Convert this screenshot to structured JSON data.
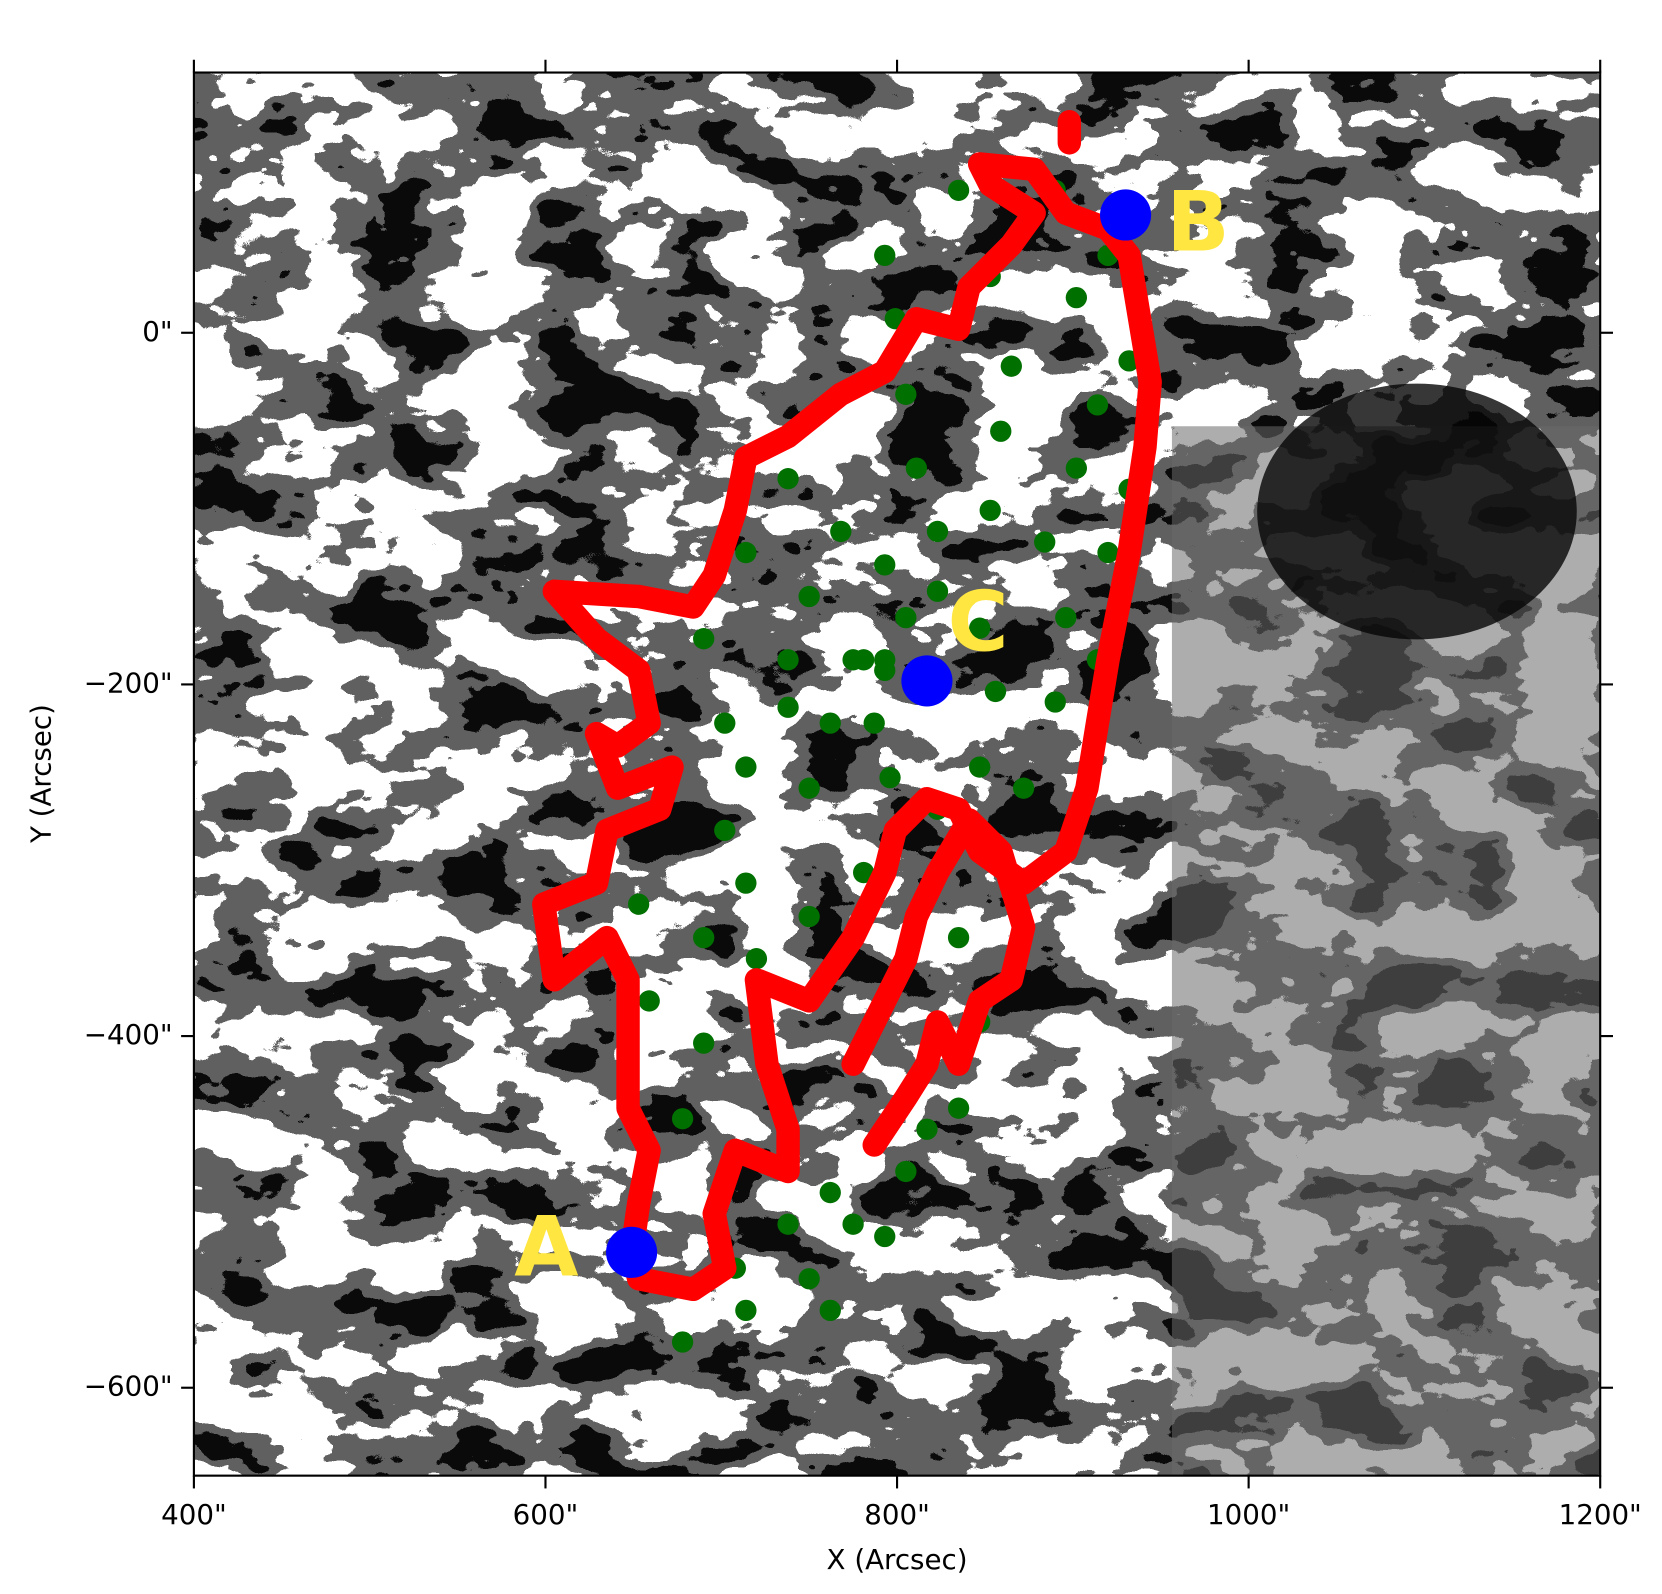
{
  "chart_data": {
    "type": "scatter",
    "x_label": "X (Arcsec)",
    "y_label": "Y (Arcsec)",
    "xlim": [
      400,
      1200
    ],
    "ylim": [
      -650,
      148
    ],
    "xticks": [
      {
        "value": 400,
        "label": "400\""
      },
      {
        "value": 600,
        "label": "600\""
      },
      {
        "value": 800,
        "label": "800\""
      },
      {
        "value": 1000,
        "label": "1000\""
      },
      {
        "value": 1200,
        "label": "1200\""
      }
    ],
    "yticks": [
      {
        "value": 0,
        "label": "0\""
      },
      {
        "value": -200,
        "label": "−200\""
      },
      {
        "value": -400,
        "label": "−400\""
      },
      {
        "value": -600,
        "label": "−600\""
      }
    ],
    "series": [
      {
        "color": "#007000",
        "mode": "markers",
        "x": [
          823,
          847,
          856,
          847,
          823,
          796,
          787,
          793,
          805,
          823,
          853,
          884,
          896,
          890,
          872,
          811,
          859,
          902,
          920,
          914,
          805,
          865,
          914,
          932,
          799,
          853,
          902,
          932,
          793,
          835,
          890,
          920,
          665,
          714,
          762,
          793,
          653,
          702,
          750,
          659,
          690,
          714,
          678,
          690,
          678,
          714,
          750,
          775,
          805,
          835,
          708,
          738,
          762,
          714,
          750,
          781,
          738,
          768,
          793,
          690,
          738,
          775,
          702,
          738,
          781,
          750,
          720,
          835,
          847,
          817,
          793,
          762
        ],
        "y": [
          -147,
          -168,
          -204,
          -247,
          -271,
          -253,
          -222,
          -186,
          -162,
          -113,
          -101,
          -119,
          -162,
          -210,
          -259,
          -77,
          -56,
          -77,
          -125,
          -186,
          -35,
          -19,
          -41,
          -89,
          8,
          32,
          20,
          -16,
          44,
          81,
          81,
          44,
          -271,
          -247,
          -222,
          -192,
          -325,
          -283,
          -259,
          -380,
          -344,
          -313,
          -447,
          -404,
          -574,
          -556,
          -538,
          -507,
          -477,
          -441,
          -532,
          -507,
          -489,
          -125,
          -150,
          -186,
          -83,
          -113,
          -132,
          -174,
          -186,
          -186,
          -222,
          -213,
          -307,
          -332,
          -356,
          -344,
          -392,
          -453,
          -514,
          -556
        ]
      },
      {
        "color": "#ff0000",
        "mode": "line",
        "x": [
          653,
          684,
          702,
          696,
          708,
          738,
          738,
          726,
          720,
          750,
          775,
          793,
          799,
          817,
          835,
          847,
          872,
          896,
          908,
          914,
          920,
          932,
          941,
          944,
          938,
          932,
          920,
          896,
          878,
          847,
          853,
          878,
          865,
          841,
          835,
          811,
          793,
          768,
          738,
          714,
          708,
          696,
          684,
          653,
          605,
          629,
          653,
          659,
          641,
          629,
          641,
          672,
          665,
          635,
          629,
          599,
          605,
          635,
          647,
          647,
          647,
          659,
          653,
          649,
          653,
          null,
          787,
          805,
          817,
          823,
          835,
          847,
          865,
          872,
          859,
          841,
          823,
          811,
          805,
          793,
          775,
          null,
          898,
          898
        ],
        "y": [
          -538,
          -544,
          -532,
          -501,
          -465,
          -477,
          -453,
          -416,
          -368,
          -380,
          -344,
          -307,
          -283,
          -265,
          -271,
          -295,
          -313,
          -295,
          -259,
          -222,
          -186,
          -125,
          -65,
          -28,
          8,
          44,
          59,
          68,
          93,
          96,
          84,
          68,
          50,
          26,
          2,
          8,
          -22,
          -35,
          -59,
          -71,
          -101,
          -138,
          -156,
          -150,
          -147,
          -174,
          -192,
          -222,
          -235,
          -228,
          -259,
          -247,
          -271,
          -283,
          -313,
          -325,
          -368,
          -344,
          -368,
          -404,
          -441,
          -465,
          -495,
          -523,
          -538,
          null,
          -462,
          -435,
          -416,
          -392,
          -416,
          -380,
          -368,
          -338,
          -295,
          -277,
          -307,
          -332,
          -356,
          -380,
          -416,
          null,
          120,
          108
        ]
      }
    ],
    "points": {
      "labels": [
        "A",
        "B",
        "C"
      ],
      "x": [
        649,
        930,
        817
      ],
      "y": [
        -523,
        67,
        -198
      ],
      "color": "#0000ff",
      "label_color": "#ffe640"
    }
  }
}
